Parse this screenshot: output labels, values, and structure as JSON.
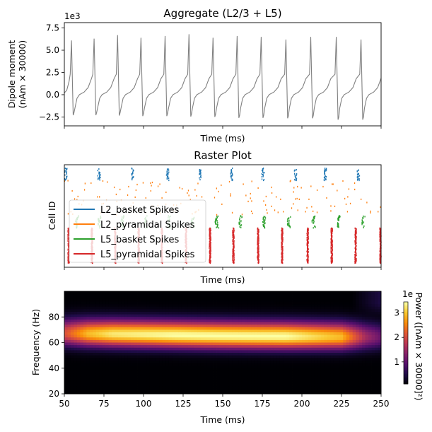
{
  "chart_data": [
    {
      "type": "line",
      "title": "Aggregate (L2/3 + L5)",
      "xlabel": "Time (ms)",
      "ylabel": [
        "Dipole moment",
        "(nAm × 30000)"
      ],
      "offset_text": "1e3",
      "xlim": [
        50,
        250
      ],
      "ylim": [
        -3.5,
        8.1
      ],
      "yticks": [
        -2.5,
        0.0,
        2.5,
        5.0,
        7.5
      ],
      "ytick_labels": [
        "−2.5",
        "0.0",
        "2.5",
        "5.0",
        "7.5"
      ],
      "xticks": [
        50,
        75,
        100,
        125,
        150,
        175,
        200,
        225,
        250
      ],
      "color": "#808080",
      "peak_times": [
        54.5,
        68.8,
        83.6,
        98.4,
        113.6,
        128.7,
        143.9,
        159.1,
        174.3,
        189.9,
        205.6,
        221.7,
        237.3
      ],
      "peak_values": [
        6.1,
        6.3,
        6.7,
        6.4,
        6.6,
        6.8,
        6.4,
        6.6,
        6.5,
        6.2,
        6.5,
        6.5,
        6.2
      ],
      "trough_values": [
        -2.3,
        -2.3,
        -2.35,
        -2.4,
        -2.4,
        -2.45,
        -2.5,
        -2.6,
        -2.6,
        -2.65,
        -2.65,
        -2.8,
        -2.8
      ]
    },
    {
      "type": "scatter",
      "title": "Raster Plot",
      "xlabel": "Time (ms)",
      "ylabel": "Cell ID",
      "xlim": [
        50,
        250
      ],
      "xticks": [
        50,
        75,
        100,
        125,
        150,
        175,
        200,
        225,
        250
      ],
      "legend_position": "lower-left",
      "series": [
        {
          "name": "L2_basket Spikes",
          "color": "#1f77b4",
          "cell_range": [
            0,
            34
          ],
          "burst_times": [
            50.9,
            71.9,
            92.9,
            115.2,
            135.7,
            155.4,
            175.4,
            196.0,
            214.7,
            235.7
          ]
        },
        {
          "name": "L2_pyramidal Spikes",
          "color": "#ff7f0e",
          "cell_range": [
            35,
            134
          ],
          "burst_times": []
        },
        {
          "name": "L5_basket Spikes",
          "color": "#2ca02c",
          "cell_range": [
            135,
            169
          ],
          "burst_times": [
            57.6,
            71.9,
            86.6,
            100.9,
            115.6,
            130.8,
            146.0,
            161.0,
            175.9,
            191.5,
            207.1,
            222.8,
            238.4
          ]
        },
        {
          "name": "L5_pyramidal Spikes",
          "color": "#d62728",
          "cell_range": [
            170,
            269
          ],
          "burst_times": [
            52.7,
            67.4,
            82.1,
            96.9,
            111.6,
            126.8,
            142.0,
            156.7,
            172.3,
            187.5,
            203.6,
            218.8,
            233.9,
            249.6
          ]
        }
      ]
    },
    {
      "type": "heatmap",
      "xlabel": "Time (ms)",
      "ylabel": "Frequency (Hz)",
      "xlim": [
        50,
        250
      ],
      "ylim": [
        20,
        100
      ],
      "xticks": [
        50,
        75,
        100,
        125,
        150,
        175,
        200,
        225,
        250
      ],
      "yticks": [
        20,
        40,
        60,
        80
      ],
      "colormap": "inferno",
      "band_center_hz": {
        "times": [
          50,
          100,
          150,
          200,
          250
        ],
        "values": [
          67,
          66,
          65,
          64.5,
          64
        ]
      },
      "band_width_hz": 6.5,
      "band_amplitude": {
        "times": [
          50,
          65,
          80,
          120,
          190,
          225,
          240,
          250
        ],
        "values": [
          0.6,
          0.85,
          0.95,
          1.0,
          1.0,
          0.85,
          0.45,
          0.3
        ]
      },
      "colorbar": {
        "label": "Power ([nAm × 30000]²)",
        "offset_text": "1e",
        "range": [
          0.1,
          3.45
        ],
        "ticks": [
          1,
          2,
          3
        ]
      }
    }
  ]
}
